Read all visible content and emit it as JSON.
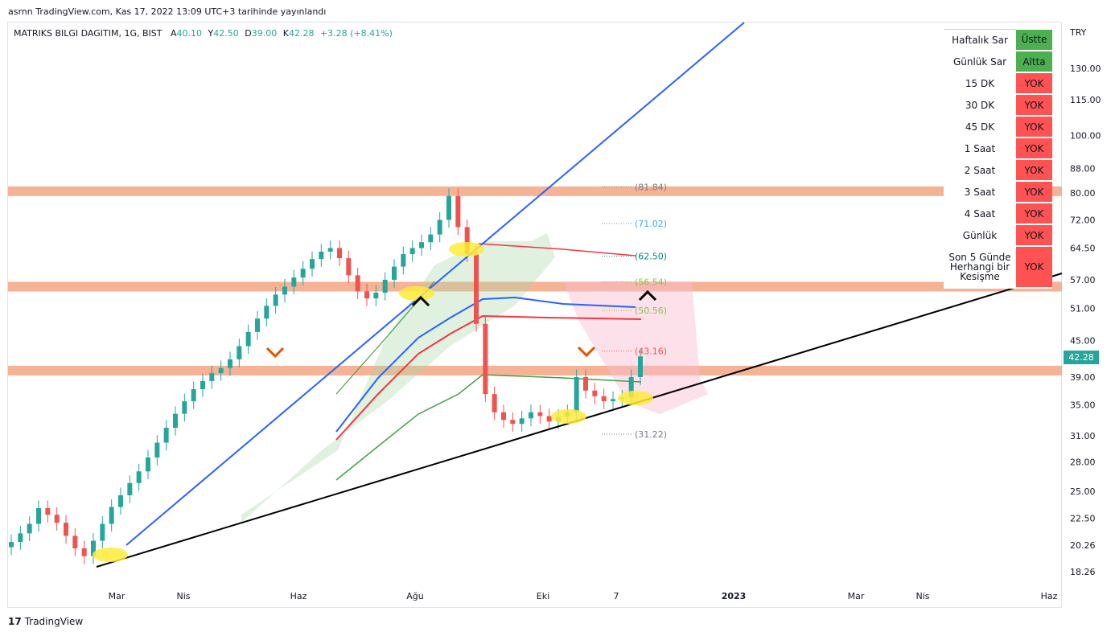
{
  "header": {
    "published": "asrnn TradingView.com, Kas 17, 2022 13:09 UTC+3 tarihinde yayınlandı"
  },
  "symbol": {
    "name": "MATRIKS BILGI DAGITIM, 1G, BIST",
    "open_label": "A",
    "open": "40.10",
    "high_label": "Y",
    "high": "42.50",
    "low_label": "D",
    "low": "39.00",
    "close_label": "K",
    "close": "42.28",
    "change": "+3.28 (+8.41%)"
  },
  "footer": {
    "brand": "TradingView",
    "brand_mark": "17"
  },
  "status_table": {
    "rows": [
      {
        "label": "Haftalık Sar",
        "status": "Üstte",
        "color": "green"
      },
      {
        "label": "Günlük Sar",
        "status": "Altta",
        "color": "green"
      },
      {
        "label": "15 DK",
        "status": "YOK",
        "color": "red"
      },
      {
        "label": "30 DK",
        "status": "YOK",
        "color": "red"
      },
      {
        "label": "45 DK",
        "status": "YOK",
        "color": "red"
      },
      {
        "label": "1 Saat",
        "status": "YOK",
        "color": "red"
      },
      {
        "label": "2 Saat",
        "status": "YOK",
        "color": "red"
      },
      {
        "label": "3 Saat",
        "status": "YOK",
        "color": "red"
      },
      {
        "label": "4 Saat",
        "status": "YOK",
        "color": "red"
      },
      {
        "label": "Günlük",
        "status": "YOK",
        "color": "red"
      },
      {
        "label": "Son 5 Günde Herhangi bir Kesişme",
        "status": "YOK",
        "color": "red"
      }
    ]
  },
  "colors": {
    "up": "#26a69a",
    "down": "#ef5350",
    "zone": "#f4a582",
    "trend_blue": "#2962ff",
    "trend_black": "#000000",
    "ema_blue": "#2962ff",
    "ema_red": "#f23645",
    "ema_green": "#43a047",
    "cloud_green": "#a5d6a7",
    "cloud_red": "#f8bbd0"
  },
  "chart_data": {
    "type": "candlestick",
    "currency": "TRY",
    "scale": "log",
    "y_ticks": [
      "130.00",
      "115.00",
      "100.00",
      "88.00",
      "80.00",
      "72.00",
      "64.50",
      "57.00",
      "51.00",
      "45.00",
      "39.00",
      "35.00",
      "31.00",
      "28.00",
      "25.00",
      "22.50",
      "20.26",
      "18.26"
    ],
    "x_ticks": [
      "Mar",
      "Nis",
      "Haz",
      "Ağu",
      "Eki",
      "7",
      "2023",
      "Mar",
      "Nis",
      "Haz"
    ],
    "last_price": "42.28",
    "levels": [
      {
        "label": "(81.84)",
        "value": 81.84,
        "color": "#787b86"
      },
      {
        "label": "(71.02)",
        "value": 71.02,
        "color": "#42a5f5"
      },
      {
        "label": "(62.50)",
        "value": 62.5,
        "color": "#00897b"
      },
      {
        "label": "(56.54)",
        "value": 56.54,
        "color": "#8bc34a"
      },
      {
        "label": "(50.56)",
        "value": 50.56,
        "color": "#8bc34a"
      },
      {
        "label": "(43.16)",
        "value": 43.16,
        "color": "#ef5350"
      },
      {
        "label": "(31.22)",
        "value": 31.22,
        "color": "#787b86"
      }
    ],
    "resistance_zones": [
      80.5,
      55.5,
      40.0
    ],
    "close_series": [
      20.5,
      21.2,
      22.0,
      23.4,
      22.8,
      22.1,
      21.0,
      20.0,
      19.4,
      20.6,
      22.0,
      23.5,
      24.6,
      25.8,
      27.0,
      28.5,
      30.2,
      32.0,
      33.8,
      35.5,
      37.2,
      38.4,
      39.6,
      40.4,
      41.8,
      44.0,
      46.5,
      49.0,
      51.5,
      53.8,
      55.5,
      57.5,
      59.5,
      61.8,
      63.6,
      64.5,
      62.0,
      58.0,
      54.5,
      53.0,
      54.2,
      57.0,
      60.0,
      63.0,
      64.5,
      66.0,
      68.0,
      72.0,
      79.0,
      70.0,
      63.0,
      48.0,
      36.5,
      34.0,
      33.0,
      32.5,
      33.2,
      34.0,
      33.5,
      32.8,
      33.4,
      34.0,
      39.0,
      37.0,
      36.2,
      35.5,
      35.8,
      36.0,
      39.0,
      42.28
    ]
  }
}
